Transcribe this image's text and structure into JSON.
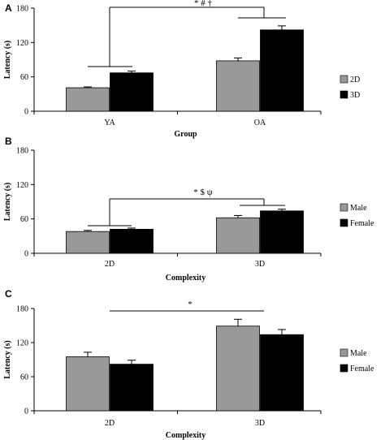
{
  "chart_data": [
    {
      "panel": "A",
      "type": "bar",
      "categories": [
        "YA",
        "OA"
      ],
      "series": [
        {
          "name": "2D",
          "values": [
            41,
            88
          ],
          "errors": [
            1.5,
            5
          ],
          "color": "#999999"
        },
        {
          "name": "3D",
          "values": [
            67,
            142
          ],
          "errors": [
            3,
            7
          ],
          "color": "#000000"
        }
      ],
      "xlabel": "Group",
      "ylabel": "Latency (s)",
      "ylim": [
        0,
        180
      ],
      "yticks": [
        0,
        60,
        120,
        180
      ],
      "legend": "right",
      "significance": "* # †"
    },
    {
      "panel": "B",
      "type": "bar",
      "categories": [
        "2D",
        "3D"
      ],
      "series": [
        {
          "name": "Male",
          "values": [
            38,
            62
          ],
          "errors": [
            2,
            4
          ],
          "color": "#999999"
        },
        {
          "name": "Female",
          "values": [
            42,
            74
          ],
          "errors": [
            2,
            3
          ],
          "color": "#000000"
        }
      ],
      "xlabel": "Complexity",
      "ylabel": "Latency (s)",
      "ylim": [
        0,
        180
      ],
      "yticks": [
        0,
        60,
        120,
        180
      ],
      "legend": "right",
      "significance": "* $ ψ"
    },
    {
      "panel": "C",
      "type": "bar",
      "categories": [
        "2D",
        "3D"
      ],
      "series": [
        {
          "name": "Male",
          "values": [
            95,
            149
          ],
          "errors": [
            8,
            12
          ],
          "color": "#999999"
        },
        {
          "name": "Female",
          "values": [
            82,
            134
          ],
          "errors": [
            7,
            9
          ],
          "color": "#000000"
        }
      ],
      "xlabel": "Complexity",
      "ylabel": "Latency (s)",
      "ylim": [
        0,
        180
      ],
      "yticks": [
        0,
        60,
        120,
        180
      ],
      "legend": "right",
      "significance": "*"
    }
  ]
}
